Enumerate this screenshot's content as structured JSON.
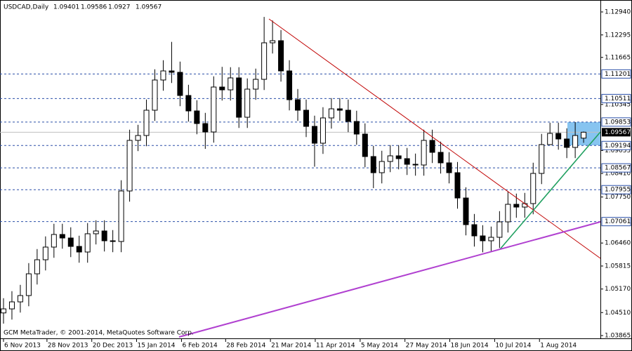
{
  "chart_data": {
    "type": "candlestick",
    "symbol": "USDCAD,Daily",
    "footer": "GCM MetaTrader, © 2001-2014, MetaQuotes Software Corp.",
    "open": [
      1.045,
      1.04613,
      1.0481,
      1.04987,
      1.05597,
      1.05991,
      1.06346,
      1.067,
      1.06601,
      1.06365,
      1.06208,
      1.0672,
      1.06798,
      1.06523,
      1.06503,
      1.0792,
      1.09338,
      1.09475,
      1.10184,
      1.11031,
      1.11286,
      1.11247,
      1.10597,
      1.10164,
      1.0981,
      1.09574,
      1.10834,
      1.10755,
      1.1109,
      1.09987,
      1.10775,
      1.1105,
      1.12074,
      1.12133,
      1.11286,
      1.10479,
      1.10184,
      1.09731,
      1.09259,
      1.09968,
      1.10223,
      1.10184,
      1.09869,
      1.09515,
      1.08885,
      1.08432,
      1.08747,
      1.08905,
      1.08826,
      1.08668,
      1.08648,
      1.09338,
      1.09003,
      1.08708,
      1.08432,
      1.07723,
      1.06975,
      1.0666,
      1.06523,
      1.06621,
      1.07054,
      1.07546,
      1.07468,
      1.07566,
      1.08412,
      1.0922,
      1.09534,
      1.09377,
      1.09141,
      1.09401
    ],
    "high": [
      1.04913,
      1.0511,
      1.05287,
      1.05897,
      1.06291,
      1.06646,
      1.07,
      1.07,
      1.06901,
      1.06665,
      1.0702,
      1.07098,
      1.07098,
      1.06823,
      1.0822,
      1.09638,
      1.09775,
      1.10484,
      1.11331,
      1.11586,
      1.121,
      1.11547,
      1.10897,
      1.10464,
      1.1011,
      1.11134,
      1.114,
      1.1139,
      1.1139,
      1.11075,
      1.1135,
      1.128,
      1.127,
      1.12433,
      1.11586,
      1.10779,
      1.10484,
      1.10031,
      1.10268,
      1.10523,
      1.10523,
      1.10484,
      1.10169,
      1.09815,
      1.09185,
      1.09047,
      1.09205,
      1.09205,
      1.09126,
      1.08968,
      1.09638,
      1.09638,
      1.09303,
      1.09008,
      1.08732,
      1.08023,
      1.07275,
      1.0696,
      1.06921,
      1.07354,
      1.079,
      1.07846,
      1.07866,
      1.08712,
      1.0952,
      1.09834,
      1.09834,
      1.09677,
      1.0985,
      1.09586
    ],
    "low": [
      1.042,
      1.04313,
      1.0451,
      1.04687,
      1.05297,
      1.05691,
      1.06046,
      1.06301,
      1.06065,
      1.05908,
      1.05908,
      1.0642,
      1.06223,
      1.06203,
      1.06203,
      1.0762,
      1.09038,
      1.09175,
      1.09884,
      1.10731,
      1.10947,
      1.10297,
      1.09864,
      1.0951,
      1.091,
      1.09274,
      1.10455,
      1.10455,
      1.09687,
      1.09687,
      1.10475,
      1.1075,
      1.11774,
      1.10986,
      1.10179,
      1.09884,
      1.09431,
      1.086,
      1.08959,
      1.09668,
      1.09884,
      1.09569,
      1.09215,
      1.08585,
      1.08,
      1.08132,
      1.08447,
      1.08526,
      1.08368,
      1.08348,
      1.08348,
      1.08703,
      1.08408,
      1.08132,
      1.07423,
      1.06675,
      1.0636,
      1.062,
      1.06223,
      1.06321,
      1.06754,
      1.07168,
      1.07168,
      1.07266,
      1.08112,
      1.09234,
      1.09077,
      1.08841,
      1.08841,
      1.0927
    ],
    "close": [
      1.04613,
      1.0481,
      1.04987,
      1.05597,
      1.05991,
      1.06346,
      1.067,
      1.06601,
      1.06365,
      1.06208,
      1.0672,
      1.06798,
      1.06523,
      1.06503,
      1.0792,
      1.09338,
      1.09475,
      1.10184,
      1.11031,
      1.11286,
      1.11247,
      1.10597,
      1.10164,
      1.0981,
      1.09574,
      1.10834,
      1.10755,
      1.1109,
      1.09987,
      1.10775,
      1.1105,
      1.12074,
      1.12133,
      1.11286,
      1.10479,
      1.10184,
      1.09731,
      1.09259,
      1.09968,
      1.10223,
      1.10184,
      1.09869,
      1.09515,
      1.08885,
      1.08432,
      1.08747,
      1.08905,
      1.08826,
      1.08668,
      1.08648,
      1.09338,
      1.09003,
      1.08708,
      1.08432,
      1.07723,
      1.06975,
      1.0666,
      1.06523,
      1.06621,
      1.07054,
      1.07546,
      1.07468,
      1.07566,
      1.08412,
      1.0922,
      1.09534,
      1.09377,
      1.09141,
      1.09475,
      1.09567
    ],
    "levels": [
      1.11201,
      1.10511,
      1.09853,
      1.09194,
      1.08567,
      1.07955,
      1.07061
    ],
    "xlim": [
      -0.25,
      70.83
    ],
    "ylim": [
      1.03826,
      1.13176
    ],
    "yticks": [
      {
        "value": 1.1294,
        "label": "1.12940"
      },
      1.12295,
      1.11665,
      1.10345,
      1.09055,
      {
        "value": 1.0841,
        "label": "1.08410"
      },
      {
        "value": 1.0775,
        "label": "1.07750"
      },
      {
        "value": 1.0646,
        "label": "1.06460"
      },
      1.05815,
      {
        "value": 1.0517,
        "label": "1.05170"
      },
      {
        "value": 1.0451,
        "label": "1.04510"
      },
      1.03865
    ],
    "xticks": [
      {
        "value": 0,
        "label": "6 Nov 2013"
      },
      {
        "value": 5.17,
        "label": "28 Nov 2013"
      },
      {
        "value": 10.5,
        "label": "20 Dec 2013"
      },
      {
        "value": 15.83,
        "label": "15 Jan 2014"
      },
      {
        "value": 21.17,
        "label": "6 Feb 2014"
      },
      {
        "value": 26.42,
        "label": "28 Feb 2014"
      },
      {
        "value": 31.75,
        "label": "21 Mar 2014"
      },
      {
        "value": 37.08,
        "label": "11 Apr 2014"
      },
      {
        "value": 42.42,
        "label": "5 May 2014"
      },
      {
        "value": 47.75,
        "label": "27 May 2014"
      },
      {
        "value": 53.08,
        "label": "18 Jun 2014"
      },
      {
        "value": 58.42,
        "label": "10 Jul 2014"
      },
      {
        "value": 63.75,
        "label": "1 Aug 2014"
      }
    ]
  }
}
